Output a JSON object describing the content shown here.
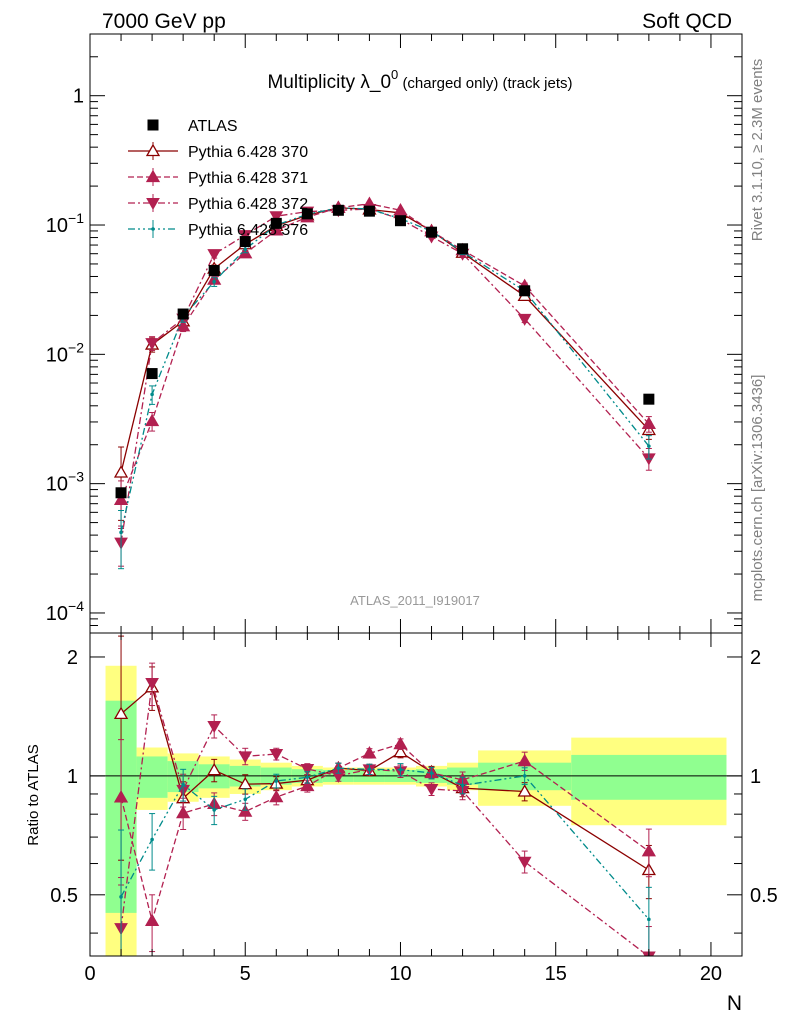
{
  "header": {
    "left": "7000 GeV pp",
    "right": "Soft QCD"
  },
  "side": {
    "rivet": "Rivet 3.1.10, ≥ 2.3M events",
    "source": "mcplots.cern.ch [arXiv:1306.3436]"
  },
  "chart_data": {
    "type": "scatter",
    "title_main": "Multiplicity λ_0",
    "title_sup": "0",
    "title_tail": "(charged only) (track jets)",
    "analysis_label": "ATLAS_2011_I919017",
    "xlabel": "N",
    "ylabel_ratio": "Ratio to ATLAS",
    "xlim": [
      0,
      21
    ],
    "ylim_main": [
      7e-05,
      3
    ],
    "ylim_ratio": [
      0.35,
      2.3
    ],
    "y_scale": "log",
    "legend_position": "top-left",
    "x_ticks": [
      "0",
      "5",
      "10",
      "15",
      "20"
    ],
    "y_ticks_main": [
      {
        "mant": "10",
        "exp": "−4",
        "value": 0.0001
      },
      {
        "mant": "10",
        "exp": "−3",
        "value": 0.001
      },
      {
        "mant": "10",
        "exp": "−2",
        "value": 0.01
      },
      {
        "mant": "10",
        "exp": "−1",
        "value": 0.1
      },
      {
        "mant": "1",
        "exp": "",
        "value": 1
      }
    ],
    "y_ticks_ratio": [
      {
        "label": "0.5",
        "value": 0.5
      },
      {
        "label": "1",
        "value": 1
      },
      {
        "label": "2",
        "value": 2
      }
    ],
    "data": {
      "name": "ATLAS",
      "color": "#000000",
      "x": [
        1,
        2,
        3,
        4,
        5,
        6,
        7,
        8,
        9,
        10,
        11,
        12,
        14,
        18
      ],
      "x_low": [
        0.5,
        1.5,
        2.5,
        3.5,
        4.5,
        5.5,
        6.5,
        7.5,
        8.5,
        9.5,
        10.5,
        11.5,
        12.5,
        15.5
      ],
      "x_high": [
        1.5,
        2.5,
        3.5,
        4.5,
        5.5,
        6.5,
        7.5,
        8.5,
        9.5,
        10.5,
        11.5,
        12.5,
        15.5,
        20.5
      ],
      "y": [
        0.00085,
        0.0071,
        0.0205,
        0.0445,
        0.0745,
        0.103,
        0.122,
        0.13,
        0.128,
        0.108,
        0.088,
        0.0655,
        0.031,
        0.0045
      ],
      "band_stat": [
        0.55,
        0.12,
        0.09,
        0.07,
        0.06,
        0.05,
        0.04,
        0.035,
        0.035,
        0.035,
        0.04,
        0.05,
        0.08,
        0.13
      ],
      "band_total": [
        0.9,
        0.18,
        0.14,
        0.12,
        0.1,
        0.08,
        0.06,
        0.05,
        0.05,
        0.05,
        0.06,
        0.08,
        0.16,
        0.25
      ]
    },
    "series": [
      {
        "name": "Pythia 6.428 370",
        "color": "#8b0000",
        "marker": "triangle-up-open",
        "line": "solid",
        "x": [
          1,
          2,
          3,
          4,
          5,
          6,
          7,
          8,
          9,
          10,
          11,
          12,
          14,
          18
        ],
        "y": [
          0.00122,
          0.0119,
          0.018,
          0.046,
          0.071,
          0.0985,
          0.119,
          0.136,
          0.132,
          0.124,
          0.09,
          0.061,
          0.0283,
          0.0026
        ],
        "err": [
          0.0007,
          0.0015,
          0.0018,
          0.003,
          0.004,
          0.004,
          0.004,
          0.004,
          0.004,
          0.004,
          0.003,
          0.003,
          0.0015,
          0.0004
        ]
      },
      {
        "name": "Pythia 6.428 371",
        "color": "#b22050",
        "marker": "triangle-up",
        "line": "dashed",
        "x": [
          1,
          2,
          3,
          4,
          5,
          6,
          7,
          8,
          9,
          10,
          11,
          12,
          14,
          18
        ],
        "y": [
          0.00075,
          0.00305,
          0.0165,
          0.0378,
          0.0605,
          0.091,
          0.115,
          0.136,
          0.146,
          0.13,
          0.0895,
          0.064,
          0.0338,
          0.0029
        ],
        "err": [
          0.0003,
          0.0005,
          0.0015,
          0.0025,
          0.003,
          0.004,
          0.004,
          0.004,
          0.004,
          0.004,
          0.003,
          0.003,
          0.0018,
          0.0004
        ]
      },
      {
        "name": "Pythia 6.428 372",
        "color": "#b22050",
        "marker": "triangle-down",
        "line": "dashdot",
        "x": [
          1,
          2,
          3,
          4,
          5,
          6,
          7,
          8,
          9,
          10,
          11,
          12,
          14,
          18
        ],
        "y": [
          0.00035,
          0.0122,
          0.0189,
          0.0595,
          0.0835,
          0.117,
          0.127,
          0.13,
          0.133,
          0.111,
          0.0815,
          0.06,
          0.0188,
          0.00157
        ],
        "err": [
          0.00012,
          0.0015,
          0.0018,
          0.004,
          0.004,
          0.004,
          0.004,
          0.004,
          0.004,
          0.004,
          0.003,
          0.003,
          0.0012,
          0.0003
        ]
      },
      {
        "name": "Pythia 6.428 376",
        "color": "#008b8b",
        "marker": "dot",
        "line": "dashdotdot",
        "x": [
          1,
          2,
          3,
          4,
          5,
          6,
          7,
          8,
          9,
          10,
          11,
          12,
          14,
          18
        ],
        "y": [
          0.00042,
          0.0049,
          0.0195,
          0.0365,
          0.065,
          0.1,
          0.121,
          0.136,
          0.133,
          0.112,
          0.0895,
          0.062,
          0.031,
          0.00195
        ],
        "err": [
          0.0002,
          0.0008,
          0.0018,
          0.003,
          0.004,
          0.004,
          0.004,
          0.004,
          0.004,
          0.004,
          0.003,
          0.003,
          0.0015,
          0.0004
        ]
      }
    ]
  }
}
